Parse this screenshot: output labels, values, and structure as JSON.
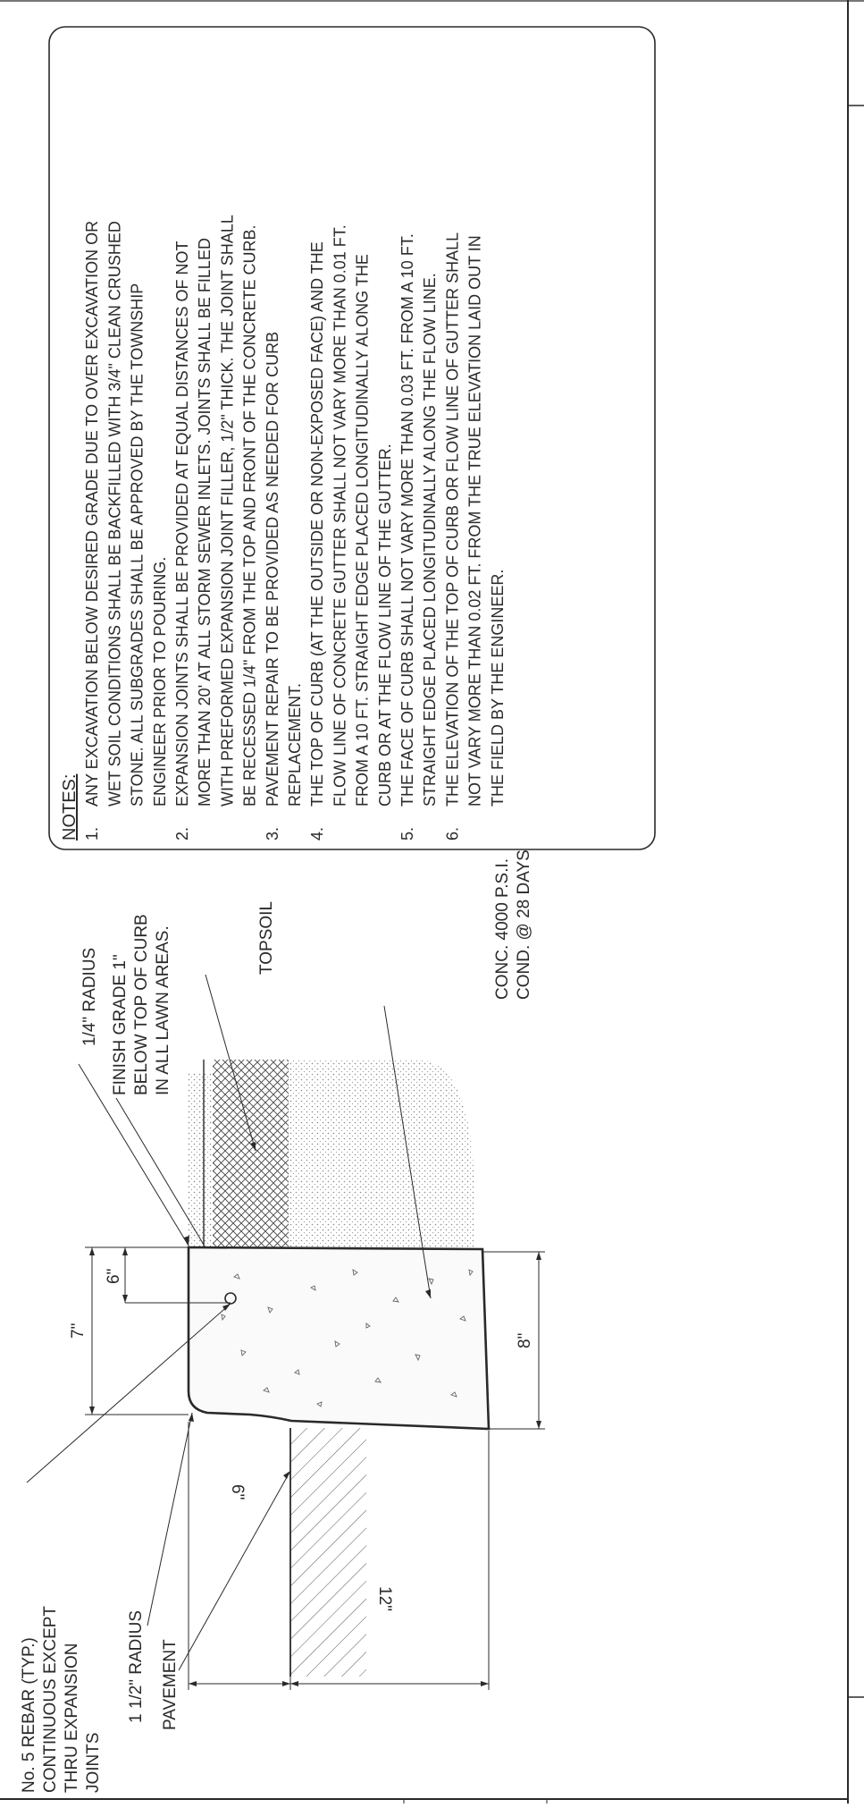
{
  "notes": {
    "heading": "NOTES:",
    "items": [
      {
        "num": "1.",
        "lines": [
          "ANY EXCAVATION BELOW DESIRED GRADE DUE TO OVER EXCAVATION OR",
          "WET SOIL CONDITIONS SHALL BE BACKFILLED WITH 3/4\" CLEAN CRUSHED",
          "STONE. ALL SUBGRADES SHALL BE APPROVED BY THE TOWNSHIP",
          "ENGINEER PRIOR TO POURING."
        ]
      },
      {
        "num": "2.",
        "lines": [
          "EXPANSION JOINTS SHALL BE PROVIDED AT EQUAL DISTANCES OF NOT",
          "MORE THAN 20' AT ALL STORM SEWER INLETS. JOINTS SHALL BE FILLED",
          "WITH PREFORMED EXPANSION JOINT FILLER, 1/2\" THICK. THE JOINT SHALL",
          "BE RECESSED 1/4\" FROM THE TOP AND FRONT OF THE CONCRETE CURB."
        ]
      },
      {
        "num": "3.",
        "lines": [
          "PAVEMENT REPAIR TO BE PROVIDED AS NEEDED FOR CURB",
          "REPLACEMENT."
        ]
      },
      {
        "num": "4.",
        "lines": [
          "THE TOP OF CURB (AT THE OUTSIDE  OR NON-EXPOSED FACE) AND THE",
          "FLOW LINE OF CONCRETE GUTTER SHALL NOT VARY MORE THAN 0.01 FT.",
          "FROM A 10 FT. STRAIGHT EDGE PLACED LONGITUDINALLY ALONG THE",
          "CURB OR AT THE FLOW LINE OF THE GUTTER."
        ]
      },
      {
        "num": "5.",
        "lines": [
          "THE FACE OF CURB SHALL NOT VARY MORE THAN 0.03 FT. FROM A 10 FT.",
          "STRAIGHT EDGE PLACED LONGITUDINALLY ALONG THE FLOW LINE."
        ]
      },
      {
        "num": "6.",
        "lines": [
          "THE ELEVATION OF THE TOP OF CURB OR FLOW LINE  OF GUTTER SHALL",
          "NOT VARY MORE THAN 0.02 FT. FROM THE TRUE ELEVATION LAID OUT IN",
          "THE FIELD BY THE ENGINEER."
        ]
      }
    ]
  },
  "labels": {
    "rebar": [
      "No. 5 REBAR (TYP.)",
      "CONTINUOUS EXCEPT",
      "THRU EXPANSION",
      "JOINTS"
    ],
    "radius_small": "1 1/2\" RADIUS",
    "pavement": "PAVEMENT",
    "radius_quarter": "1/4\" RADIUS",
    "finish_grade": [
      "FINISH GRADE 1\"",
      "BELOW TOP OF CURB",
      "IN ALL LAWN AREAS."
    ],
    "topsoil": "TOPSOIL",
    "concrete": [
      "CONC. 4000 P.S.I.",
      "COND. @ 28 DAYS"
    ]
  },
  "dimensions": {
    "d7": "7\"",
    "d6top": "6\"",
    "d8": "8\"",
    "d6side": "6\"",
    "d12": "12\""
  },
  "colors": {
    "ink": "#2a2a2a",
    "hatch": "#555555",
    "stipple": "#8a8a8a"
  }
}
